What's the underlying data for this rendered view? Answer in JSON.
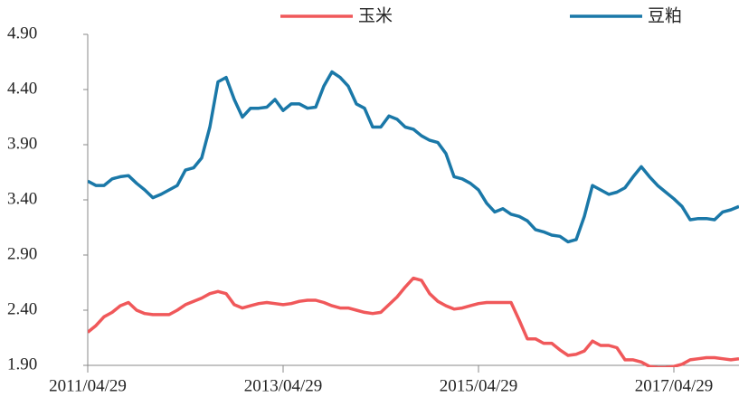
{
  "chart_data": {
    "type": "line",
    "categories": [
      "2011/04/29",
      null,
      null,
      null,
      null,
      null,
      null,
      null,
      null,
      null,
      null,
      null,
      null,
      null,
      null,
      null,
      null,
      null,
      null,
      null,
      null,
      null,
      null,
      null,
      "2013/04/29",
      null,
      null,
      null,
      null,
      null,
      null,
      null,
      null,
      null,
      null,
      null,
      null,
      null,
      null,
      null,
      null,
      null,
      null,
      null,
      null,
      null,
      null,
      null,
      "2015/04/29",
      null,
      null,
      null,
      null,
      null,
      null,
      null,
      null,
      null,
      null,
      null,
      null,
      null,
      null,
      null,
      null,
      null,
      null,
      null,
      null,
      null,
      null,
      null,
      "2017/04/29",
      null,
      null,
      null,
      null,
      null,
      null,
      null,
      null
    ],
    "series": [
      {
        "name": "玉米",
        "color": "#f0585a",
        "values": [
          2.2,
          2.26,
          2.34,
          2.38,
          2.44,
          2.47,
          2.4,
          2.37,
          2.36,
          2.36,
          2.36,
          2.4,
          2.45,
          2.48,
          2.51,
          2.55,
          2.57,
          2.55,
          2.45,
          2.42,
          2.44,
          2.46,
          2.47,
          2.46,
          2.45,
          2.46,
          2.48,
          2.49,
          2.49,
          2.47,
          2.44,
          2.42,
          2.42,
          2.4,
          2.38,
          2.37,
          2.38,
          2.45,
          2.52,
          2.61,
          2.69,
          2.67,
          2.55,
          2.48,
          2.44,
          2.41,
          2.42,
          2.44,
          2.46,
          2.47,
          2.47,
          2.47,
          2.47,
          2.31,
          2.14,
          2.14,
          2.1,
          2.1,
          2.04,
          1.99,
          2.0,
          2.03,
          2.12,
          2.08,
          2.08,
          2.06,
          1.95,
          1.95,
          1.93,
          1.89,
          1.88,
          1.88,
          1.89,
          1.91,
          1.95,
          1.96,
          1.97,
          1.97,
          1.96,
          1.95,
          1.96
        ]
      },
      {
        "name": "豆粕",
        "color": "#1a78a8",
        "values": [
          3.57,
          3.53,
          3.53,
          3.59,
          3.61,
          3.62,
          3.55,
          3.49,
          3.42,
          3.45,
          3.49,
          3.53,
          3.67,
          3.69,
          3.78,
          4.06,
          4.47,
          4.51,
          4.31,
          4.15,
          4.23,
          4.23,
          4.24,
          4.31,
          4.21,
          4.27,
          4.27,
          4.23,
          4.24,
          4.43,
          4.56,
          4.51,
          4.43,
          4.27,
          4.23,
          4.06,
          4.06,
          4.16,
          4.13,
          4.06,
          4.04,
          3.98,
          3.94,
          3.92,
          3.82,
          3.61,
          3.59,
          3.55,
          3.49,
          3.37,
          3.29,
          3.32,
          3.27,
          3.25,
          3.21,
          3.13,
          3.11,
          3.08,
          3.07,
          3.02,
          3.04,
          3.25,
          3.53,
          3.49,
          3.45,
          3.47,
          3.51,
          3.61,
          3.7,
          3.61,
          3.53,
          3.47,
          3.41,
          3.34,
          3.22,
          3.23,
          3.23,
          3.22,
          3.29,
          3.31,
          3.34
        ]
      }
    ],
    "ylim": [
      1.9,
      4.9
    ],
    "yticks": [
      {
        "value": 1.9,
        "label": "1.90"
      },
      {
        "value": 2.4,
        "label": "2.40"
      },
      {
        "value": 2.9,
        "label": "2.90"
      },
      {
        "value": 3.4,
        "label": "3.40"
      },
      {
        "value": 3.9,
        "label": "3.90"
      },
      {
        "value": 4.4,
        "label": "4.40"
      },
      {
        "value": 4.9,
        "label": "4.90"
      }
    ],
    "legend": "top"
  }
}
